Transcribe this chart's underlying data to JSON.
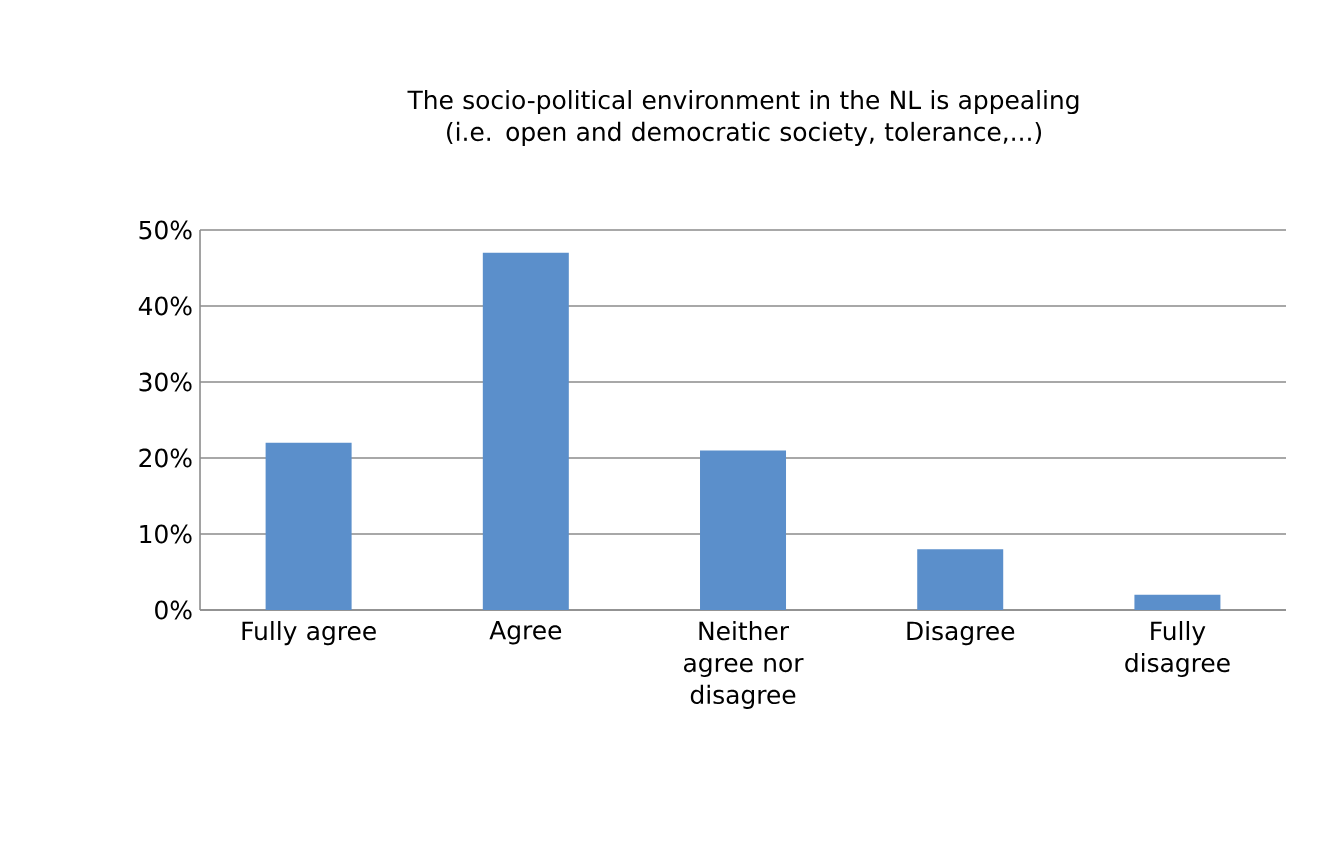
{
  "chart_data": {
    "type": "bar",
    "title": "The socio-political environment in the NL is appealing (i.e. open and democratic society, tolerance,...)",
    "categories": [
      "Fully agree",
      "Agree",
      "Neither agree nor disagree",
      "Disagree",
      "Fully disagree"
    ],
    "values": [
      22,
      47,
      21,
      8,
      2
    ],
    "color": "#5b8fcb",
    "ylim": [
      0,
      50
    ],
    "yticks": [
      {
        "value": 0,
        "label": "0%"
      },
      {
        "value": 10,
        "label": "10%"
      },
      {
        "value": 20,
        "label": "20%"
      },
      {
        "value": 30,
        "label": "30%"
      },
      {
        "value": 40,
        "label": "40%"
      },
      {
        "value": 50,
        "label": "50%"
      }
    ],
    "grid": "y"
  }
}
